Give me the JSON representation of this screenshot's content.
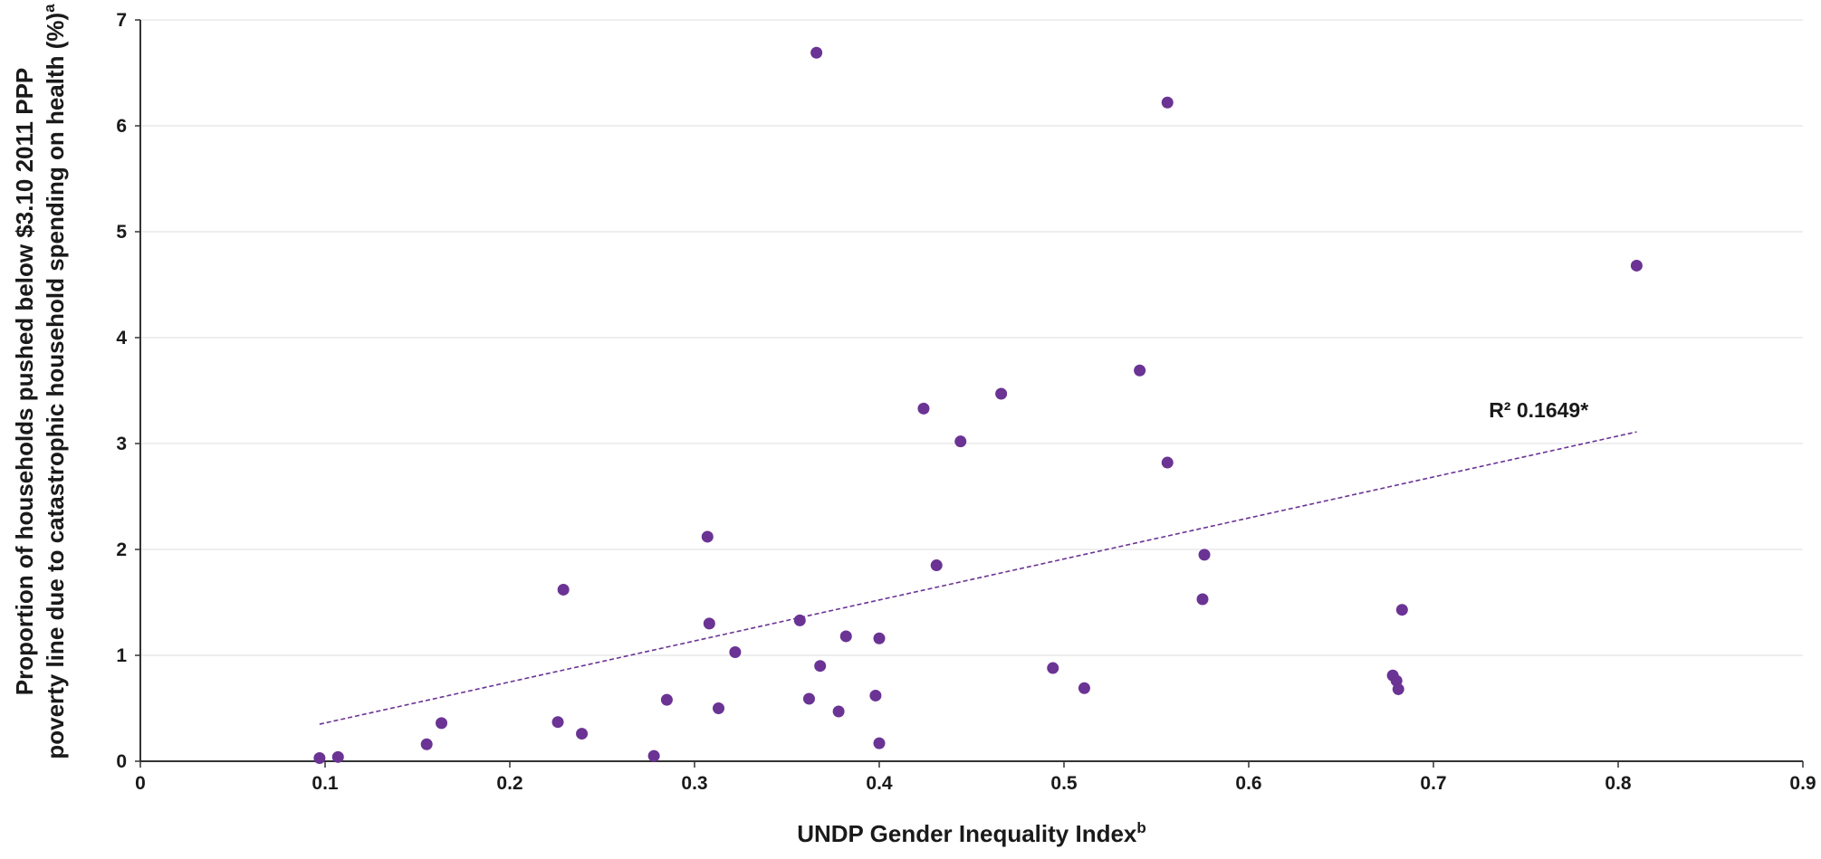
{
  "chart_data": {
    "type": "scatter",
    "xlabel": "UNDP Gender Inequality Index",
    "xlabel_sup": "b",
    "ylabel_line1": "Proportion of households pushed below $3.10 2011 PPP",
    "ylabel_line2": "poverty line due to catastrophic household spending on health (%)",
    "ylabel_sup": "a",
    "xlim": [
      0,
      0.9
    ],
    "ylim": [
      0,
      7
    ],
    "x_ticks": [
      0,
      0.1,
      0.2,
      0.3,
      0.4,
      0.5,
      0.6,
      0.7,
      0.8,
      0.9
    ],
    "x_tick_labels": [
      "0",
      "0.1",
      "0.2",
      "0.3",
      "0.4",
      "0.5",
      "0.6",
      "0.7",
      "0.8",
      "0.9"
    ],
    "y_ticks": [
      0,
      1,
      2,
      3,
      4,
      5,
      6,
      7
    ],
    "y_tick_labels": [
      "0",
      "1",
      "2",
      "3",
      "4",
      "5",
      "6",
      "7"
    ],
    "grid": "horizontal",
    "point_color": "#6a3394",
    "trendline_color": "#6a3394",
    "axis_color": "#333333",
    "grid_color": "#dcdcdc",
    "points": [
      {
        "x": 0.097,
        "y": 0.03
      },
      {
        "x": 0.107,
        "y": 0.04
      },
      {
        "x": 0.155,
        "y": 0.16
      },
      {
        "x": 0.163,
        "y": 0.36
      },
      {
        "x": 0.226,
        "y": 0.37
      },
      {
        "x": 0.229,
        "y": 1.62
      },
      {
        "x": 0.239,
        "y": 0.26
      },
      {
        "x": 0.278,
        "y": 0.05
      },
      {
        "x": 0.285,
        "y": 0.58
      },
      {
        "x": 0.307,
        "y": 2.12
      },
      {
        "x": 0.308,
        "y": 1.3
      },
      {
        "x": 0.313,
        "y": 0.5
      },
      {
        "x": 0.322,
        "y": 1.03
      },
      {
        "x": 0.357,
        "y": 1.33
      },
      {
        "x": 0.362,
        "y": 0.59
      },
      {
        "x": 0.366,
        "y": 6.69
      },
      {
        "x": 0.368,
        "y": 0.9
      },
      {
        "x": 0.378,
        "y": 0.47
      },
      {
        "x": 0.382,
        "y": 1.18
      },
      {
        "x": 0.398,
        "y": 0.62
      },
      {
        "x": 0.4,
        "y": 1.16
      },
      {
        "x": 0.4,
        "y": 0.17
      },
      {
        "x": 0.424,
        "y": 3.33
      },
      {
        "x": 0.431,
        "y": 1.85
      },
      {
        "x": 0.444,
        "y": 3.02
      },
      {
        "x": 0.466,
        "y": 3.47
      },
      {
        "x": 0.494,
        "y": 0.88
      },
      {
        "x": 0.511,
        "y": 0.69
      },
      {
        "x": 0.541,
        "y": 3.69
      },
      {
        "x": 0.556,
        "y": 6.22
      },
      {
        "x": 0.556,
        "y": 2.82
      },
      {
        "x": 0.575,
        "y": 1.53
      },
      {
        "x": 0.576,
        "y": 1.95
      },
      {
        "x": 0.678,
        "y": 0.81
      },
      {
        "x": 0.68,
        "y": 0.76
      },
      {
        "x": 0.681,
        "y": 0.68
      },
      {
        "x": 0.683,
        "y": 1.43
      },
      {
        "x": 0.81,
        "y": 4.68
      }
    ],
    "trendline": {
      "x": [
        0.097,
        0.81
      ],
      "y": [
        0.35,
        3.11
      ]
    },
    "annotation_text": "R² 0.1649*",
    "annotation_anchor": {
      "x": 0.73,
      "y": 3.25
    }
  }
}
